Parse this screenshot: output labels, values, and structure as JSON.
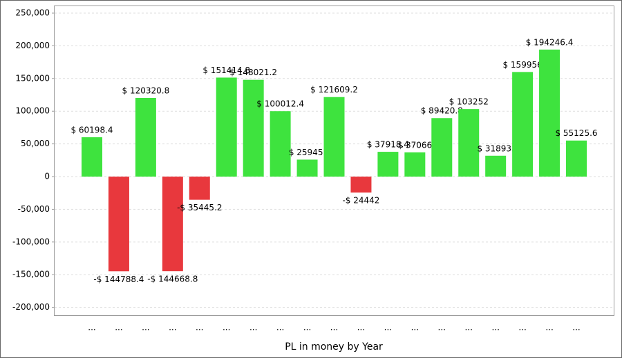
{
  "chart_data": {
    "type": "bar",
    "x_label": "PL in money by Year",
    "categories": [
      "...",
      "...",
      "...",
      "...",
      "...",
      "...",
      "...",
      "...",
      "...",
      "...",
      "...",
      "...",
      "...",
      "...",
      "...",
      "...",
      "...",
      "...",
      "..."
    ],
    "values": [
      60198.4,
      -144788.4,
      120320.8,
      -144668.8,
      -35445.2,
      151414.8,
      148021.2,
      100012.4,
      25945,
      121609.2,
      -24442,
      37918.4,
      37066,
      89420.8,
      103252,
      31893,
      159956,
      194246.4,
      55125.6
    ],
    "value_labels": [
      "$ 60198.4",
      "-$ 144788.4",
      "$ 120320.8",
      "-$ 144668.8",
      "-$ 35445.2",
      "$ 151414.8",
      "$ 148021.2",
      "$ 100012.4",
      "$ 25945.",
      "$ 121609.2",
      "-$ 24442",
      "$ 37918.4",
      "$ 37066",
      "$ 89420.8",
      "$ 103252",
      "$ 31893.",
      "$ 159956",
      "$ 194246.4",
      "$ 55125.6"
    ],
    "color": "#3ee33e",
    "negative_color": "#e8383d",
    "ylim": [
      -212000,
      261600
    ],
    "yticks": [
      {
        "value": -200000,
        "label": "-200,000"
      },
      {
        "value": -150000,
        "label": "-150,000"
      },
      {
        "value": -100000,
        "label": "-100,000"
      },
      {
        "value": -50000,
        "label": "-50,000"
      },
      0,
      {
        "value": 50000,
        "label": "50,000"
      },
      {
        "value": 100000,
        "label": "100,000"
      },
      {
        "value": 150000,
        "label": "150,000"
      },
      {
        "value": 200000,
        "label": "200,000"
      },
      {
        "value": 250000,
        "label": "250,000"
      }
    ],
    "grid": true
  }
}
